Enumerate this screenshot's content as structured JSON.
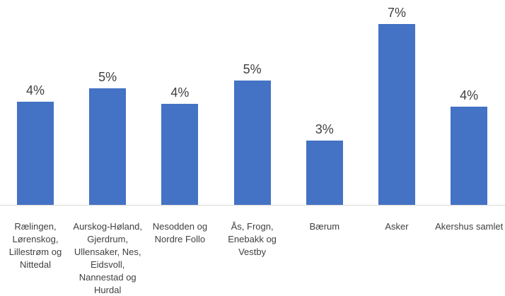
{
  "chart_data": {
    "type": "bar",
    "categories": [
      "Rælingen, Lørenskog, Lillestrøm og Nittedal",
      "Aurskog-Høland, Gjerdrum, Ullensaker, Nes, Eidsvoll, Nannestad og Hurdal",
      "Nesodden og Nordre Follo",
      "Ås, Frogn, Enebakk og Vestby",
      "Bærum",
      "Asker",
      "Akershus samlet"
    ],
    "values": [
      4.0,
      4.5,
      3.9,
      4.8,
      2.5,
      7.0,
      3.8
    ],
    "value_labels": [
      "4%",
      "5%",
      "4%",
      "5%",
      "3%",
      "7%",
      "4%"
    ],
    "color": "#4472c4"
  }
}
